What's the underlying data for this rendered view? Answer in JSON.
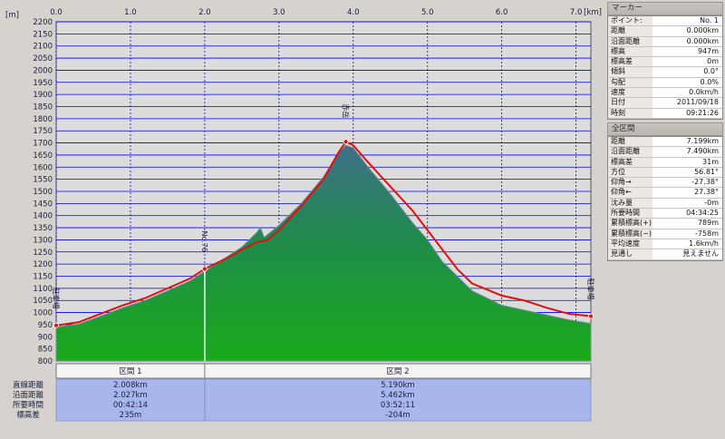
{
  "chart_data": {
    "type": "area",
    "xlabel": "",
    "ylabel": "",
    "x_unit": "[km]",
    "y_unit": "[m]",
    "xlim": [
      0.0,
      7.2
    ],
    "ylim": [
      800,
      2200
    ],
    "x_ticks": [
      "0.0",
      "1.0",
      "2.0",
      "3.0",
      "4.0",
      "5.0",
      "6.0",
      "7.0"
    ],
    "y_ticks": [
      "800",
      "850",
      "900",
      "950",
      "1000",
      "1050",
      "1100",
      "1150",
      "1200",
      "1250",
      "1300",
      "1350",
      "1400",
      "1450",
      "1500",
      "1550",
      "1600",
      "1650",
      "1700",
      "1750",
      "1800",
      "1850",
      "1900",
      "1950",
      "2000",
      "2050",
      "2100",
      "2150",
      "2200"
    ],
    "terrain": {
      "x": [
        0.0,
        0.3,
        0.6,
        0.9,
        1.2,
        1.5,
        1.8,
        2.0,
        2.3,
        2.5,
        2.7,
        2.75,
        2.8,
        3.0,
        3.3,
        3.6,
        3.8,
        3.9,
        4.0,
        4.2,
        4.5,
        4.8,
        5.0,
        5.2,
        5.4,
        5.6,
        5.8,
        6.0,
        6.3,
        6.6,
        6.9,
        7.2
      ],
      "y": [
        940,
        952,
        985,
        1020,
        1050,
        1090,
        1130,
        1170,
        1230,
        1270,
        1330,
        1350,
        1310,
        1360,
        1450,
        1560,
        1660,
        1690,
        1680,
        1600,
        1490,
        1370,
        1300,
        1210,
        1150,
        1090,
        1060,
        1030,
        1010,
        990,
        970,
        955
      ]
    },
    "route": {
      "x": [
        0.0,
        0.3,
        0.6,
        0.9,
        1.2,
        1.5,
        1.8,
        2.0,
        2.3,
        2.5,
        2.7,
        2.85,
        3.0,
        3.3,
        3.6,
        3.8,
        3.9,
        4.0,
        4.2,
        4.5,
        4.8,
        5.0,
        5.2,
        5.4,
        5.6,
        5.8,
        6.0,
        6.3,
        6.6,
        6.9,
        7.2
      ],
      "y": [
        947,
        960,
        995,
        1030,
        1060,
        1100,
        1140,
        1180,
        1225,
        1260,
        1290,
        1300,
        1340,
        1440,
        1550,
        1660,
        1705,
        1690,
        1620,
        1520,
        1420,
        1340,
        1260,
        1180,
        1120,
        1095,
        1070,
        1050,
        1020,
        995,
        985
      ]
    },
    "markers": [
      {
        "x": 0.0,
        "label": "駐車場"
      },
      {
        "x": 2.0,
        "label": "No.76"
      },
      {
        "x": 3.9,
        "label": "赤岳"
      },
      {
        "x": 7.2,
        "label": "駐車場"
      }
    ],
    "split_x": 2.0,
    "segments": {
      "row_labels": [
        "直線距離",
        "沿面距離",
        "所要時間",
        "標高差"
      ],
      "items": [
        {
          "name": "区間 1",
          "values": [
            "2.008km",
            "2.027km",
            "00:42:14",
            "235m"
          ]
        },
        {
          "name": "区間 2",
          "values": [
            "5.190km",
            "5.462km",
            "03:52:11",
            "-204m"
          ]
        }
      ]
    },
    "colors": {
      "plot_bg": "#dcdcdc",
      "grid": "#0000ff",
      "terrain_top": "#3f6f8a",
      "terrain_bottom": "#1aaa1a",
      "route": "#e01010",
      "segment_bg": "#a8b6ee"
    }
  },
  "marker_panel": {
    "title": "マーカー",
    "rows": [
      {
        "k": "ポイント:",
        "v": "No. 1"
      },
      {
        "k": "距離",
        "v": "0.000km"
      },
      {
        "k": "沿面距離",
        "v": "0.000km"
      },
      {
        "k": "標高",
        "v": "947m"
      },
      {
        "k": "標高差",
        "v": "0m"
      },
      {
        "k": "傾斜",
        "v": "0.0°"
      },
      {
        "k": "勾配",
        "v": "0.0%"
      },
      {
        "k": "速度",
        "v": "0.0km/h"
      },
      {
        "k": "日付",
        "v": "2011/09/18"
      },
      {
        "k": "時刻",
        "v": "09:21:26"
      }
    ]
  },
  "total_panel": {
    "title": "全区間",
    "rows": [
      {
        "k": "距離",
        "v": "7.199km"
      },
      {
        "k": "沿面距離",
        "v": "7.490km"
      },
      {
        "k": "標高差",
        "v": "31m"
      },
      {
        "k": "方位",
        "v": "56.81°"
      },
      {
        "k": "仰角→",
        "v": "-27.38°"
      },
      {
        "k": "仰角←",
        "v": "27.38°"
      },
      {
        "k": "沈み量",
        "v": "-0m"
      },
      {
        "k": "所要時間",
        "v": "04:34:25"
      },
      {
        "k": "累積標高(+)",
        "v": "789m"
      },
      {
        "k": "累積標高(−)",
        "v": "-758m"
      },
      {
        "k": "平均速度",
        "v": "1.6km/h"
      },
      {
        "k": "見通し",
        "v": "見えません"
      }
    ]
  }
}
